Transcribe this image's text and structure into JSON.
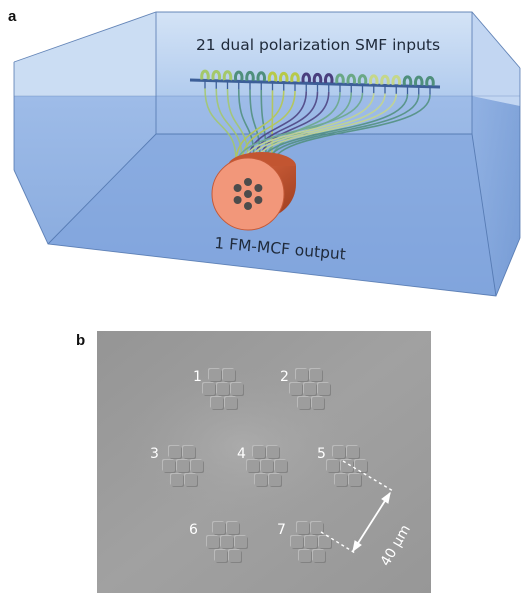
{
  "figure": {
    "panel_a": {
      "label": "a",
      "inputs_label": "21 dual polarization SMF inputs",
      "output_label": "1 FM-MCF output",
      "fiber_group_colors": [
        "#a4c86a",
        "#4f8f7c",
        "#b7c94a",
        "#4a3f7e",
        "#6aa885",
        "#c5d78a",
        "#4f8f7c"
      ],
      "block_color": "#7fa6de",
      "connector_color": "#f08a6a"
    },
    "panel_b": {
      "label": "b",
      "core_labels": [
        "1",
        "2",
        "3",
        "4",
        "5",
        "6",
        "7"
      ],
      "scale_label": "40 μm"
    }
  }
}
